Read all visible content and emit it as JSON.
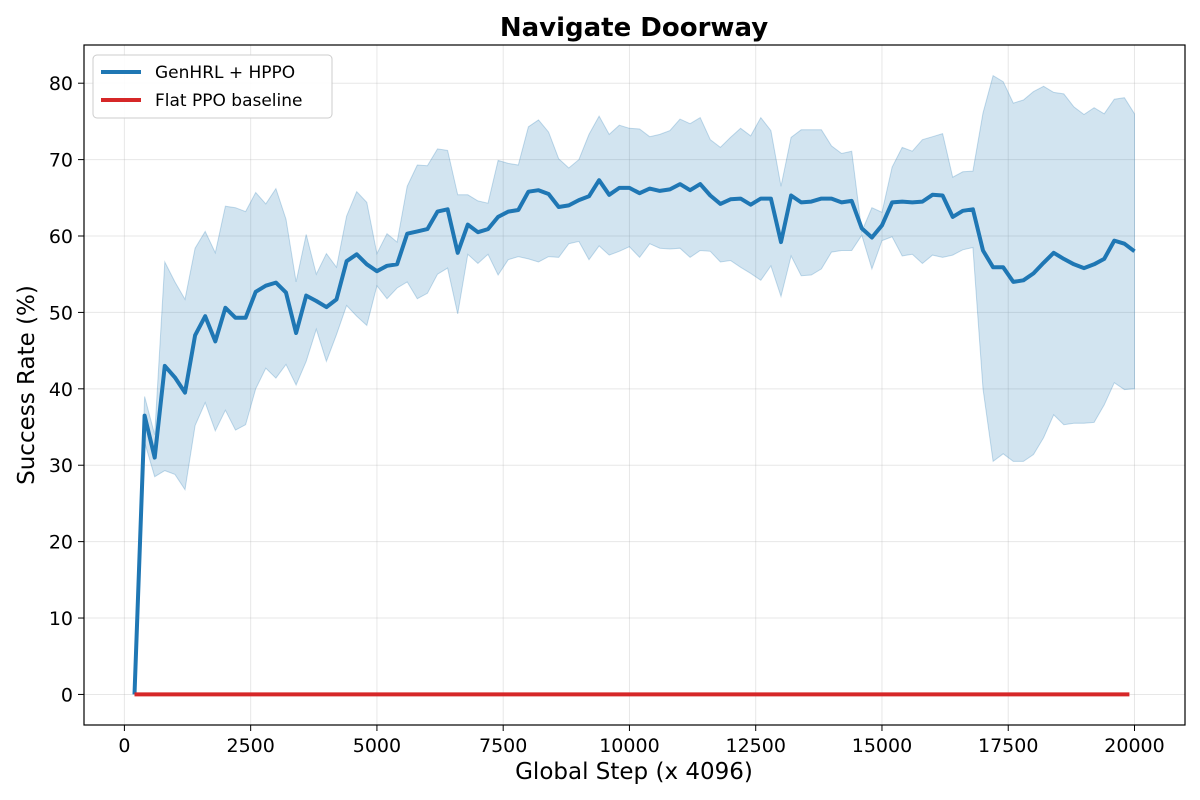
{
  "chart_data": {
    "type": "line",
    "title": "Navigate Doorway",
    "xlabel": "Global Step (x 4096)",
    "ylabel": "Success Rate (%)",
    "xlim": [
      -800,
      21000
    ],
    "ylim": [
      -4,
      85
    ],
    "xticks": [
      0,
      2500,
      5000,
      7500,
      10000,
      12500,
      15000,
      17500,
      20000
    ],
    "yticks": [
      0,
      10,
      20,
      30,
      40,
      50,
      60,
      70,
      80
    ],
    "grid": true,
    "legend_position": "top-left",
    "colors": {
      "genhrl": "#1f77b4",
      "band": "#1f77b4",
      "flat": "#d62728"
    },
    "series": [
      {
        "name": "GenHRL + HPPO",
        "x": [
          200,
          400,
          600,
          800,
          1000,
          1200,
          1400,
          1600,
          1800,
          2000,
          2200,
          2400,
          2600,
          2800,
          3000,
          3200,
          3400,
          3600,
          3800,
          4000,
          4200,
          4400,
          4600,
          4800,
          5000,
          5200,
          5400,
          5600,
          5800,
          6000,
          6200,
          6400,
          6600,
          6800,
          7000,
          7200,
          7400,
          7600,
          7800,
          8000,
          8200,
          8400,
          8600,
          8800,
          9000,
          9200,
          9400,
          9600,
          9800,
          10000,
          10200,
          10400,
          10600,
          10800,
          11000,
          11200,
          11400,
          11600,
          11800,
          12000,
          12200,
          12400,
          12600,
          12800,
          13000,
          13200,
          13400,
          13600,
          13800,
          14000,
          14200,
          14400,
          14600,
          14800,
          15000,
          15200,
          15400,
          15600,
          15800,
          16000,
          16200,
          16400,
          16600,
          16800,
          17000,
          17200,
          17400,
          17600,
          17800,
          18000,
          18200,
          18400,
          18600,
          18800,
          19000,
          19200,
          19400,
          19600,
          19800,
          20000
        ],
        "y": [
          0,
          36.5,
          31,
          43,
          41.5,
          39.5,
          47,
          49.5,
          46.2,
          50.6,
          49.3,
          49.3,
          52.7,
          53.5,
          53.9,
          52.6,
          47.3,
          52.2,
          51.5,
          50.7,
          51.7,
          56.7,
          57.6,
          56.3,
          55.4,
          56.1,
          56.3,
          60.3,
          60.6,
          60.9,
          63.2,
          63.5,
          57.8,
          61.5,
          60.5,
          60.9,
          62.5,
          63.2,
          63.4,
          65.8,
          66,
          65.5,
          63.8,
          64,
          64.7,
          65.2,
          67.3,
          65.4,
          66.3,
          66.3,
          65.6,
          66.2,
          65.9,
          66.1,
          66.8,
          66,
          66.8,
          65.3,
          64.2,
          64.8,
          64.9,
          64.1,
          64.9,
          64.9,
          59.2,
          65.3,
          64.4,
          64.5,
          64.9,
          64.9,
          64.4,
          64.6,
          61,
          59.8,
          61.4,
          64.4,
          64.5,
          64.4,
          64.5,
          65.4,
          65.3,
          62.5,
          63.3,
          63.5,
          58.1,
          55.9,
          55.9,
          54,
          54.2,
          55.1,
          56.5,
          57.8,
          57,
          56.3,
          55.8,
          56.3,
          57,
          59.4,
          59,
          58
        ]
      },
      {
        "name": "Flat PPO baseline",
        "x": [
          200,
          19900
        ],
        "y": [
          0,
          0
        ]
      }
    ],
    "band": {
      "x": [
        200,
        400,
        600,
        800,
        1000,
        1200,
        1400,
        1600,
        1800,
        2000,
        2200,
        2400,
        2600,
        2800,
        3000,
        3200,
        3400,
        3600,
        3800,
        4000,
        4200,
        4400,
        4600,
        4800,
        5000,
        5200,
        5400,
        5600,
        5800,
        6000,
        6200,
        6400,
        6600,
        6800,
        7000,
        7200,
        7400,
        7600,
        7800,
        8000,
        8200,
        8400,
        8600,
        8800,
        9000,
        9200,
        9400,
        9600,
        9800,
        10000,
        10200,
        10400,
        10600,
        10800,
        11000,
        11200,
        11400,
        11600,
        11800,
        12000,
        12200,
        12400,
        12600,
        12800,
        13000,
        13200,
        13400,
        13600,
        13800,
        14000,
        14200,
        14400,
        14600,
        14800,
        15000,
        15200,
        15400,
        15600,
        15800,
        16000,
        16200,
        16400,
        16600,
        16800,
        17000,
        17200,
        17400,
        17600,
        17800,
        18000,
        18200,
        18400,
        18600,
        18800,
        19000,
        19200,
        19400,
        19600,
        19800,
        20000
      ],
      "lower": [
        0,
        33,
        28.5,
        29.3,
        28.8,
        26.8,
        35.2,
        38.2,
        34.5,
        37.2,
        34.6,
        35.3,
        40,
        42.7,
        41.4,
        43.2,
        40.5,
        43.6,
        47.8,
        43.6,
        47.1,
        50.9,
        49.5,
        48.3,
        53.5,
        51.8,
        53.2,
        54,
        51.8,
        52.5,
        55,
        55.8,
        49.8,
        57.6,
        56.4,
        57.6,
        54.9,
        56.9,
        57.3,
        57,
        56.6,
        57.3,
        57.2,
        59,
        59.3,
        56.9,
        58.7,
        57.5,
        58,
        58.6,
        57.2,
        59,
        58.4,
        58.3,
        58.4,
        57.2,
        58.1,
        58,
        56.6,
        56.8,
        55.9,
        55.1,
        54.2,
        56.1,
        52.1,
        57.4,
        54.8,
        54.9,
        55.7,
        57.9,
        58.1,
        58.1,
        60.1,
        55.7,
        59.4,
        59.9,
        57.4,
        57.6,
        56.4,
        57.5,
        57.2,
        57.5,
        58.2,
        58.5,
        40,
        30.5,
        31.5,
        30.5,
        30.5,
        31.4,
        33.6,
        36.6,
        35.3,
        35.5,
        35.5,
        35.6,
        37.9,
        40.8,
        39.9,
        40
      ],
      "upper": [
        0,
        39,
        34,
        56.6,
        54,
        51.7,
        58.4,
        60.6,
        57.8,
        63.9,
        63.7,
        63.2,
        65.7,
        64.2,
        66.2,
        62.2,
        54,
        60.2,
        55,
        57.7,
        55.9,
        62.6,
        65.8,
        64.4,
        57.7,
        60.3,
        59.2,
        66.5,
        69.3,
        69.2,
        71.4,
        71.2,
        65.4,
        65.4,
        64.6,
        64.3,
        69.9,
        69.5,
        69.3,
        74.3,
        75.2,
        73.6,
        70.1,
        68.9,
        70,
        73.3,
        75.7,
        73.3,
        74.5,
        74.1,
        74,
        73,
        73.3,
        73.8,
        75.3,
        74.7,
        75.5,
        72.6,
        71.6,
        72.9,
        74.1,
        73.1,
        75.5,
        73.8,
        66.5,
        72.9,
        73.9,
        73.9,
        73.9,
        71.8,
        70.8,
        71.1,
        60.6,
        63.7,
        63.1,
        69,
        71.6,
        71.1,
        72.6,
        73,
        73.4,
        67.7,
        68.4,
        68.5,
        76.1,
        81,
        80.2,
        77.4,
        77.8,
        78.9,
        79.6,
        78.8,
        78.6,
        76.9,
        75.9,
        76.8,
        76,
        77.9,
        78.1,
        76
      ]
    }
  }
}
